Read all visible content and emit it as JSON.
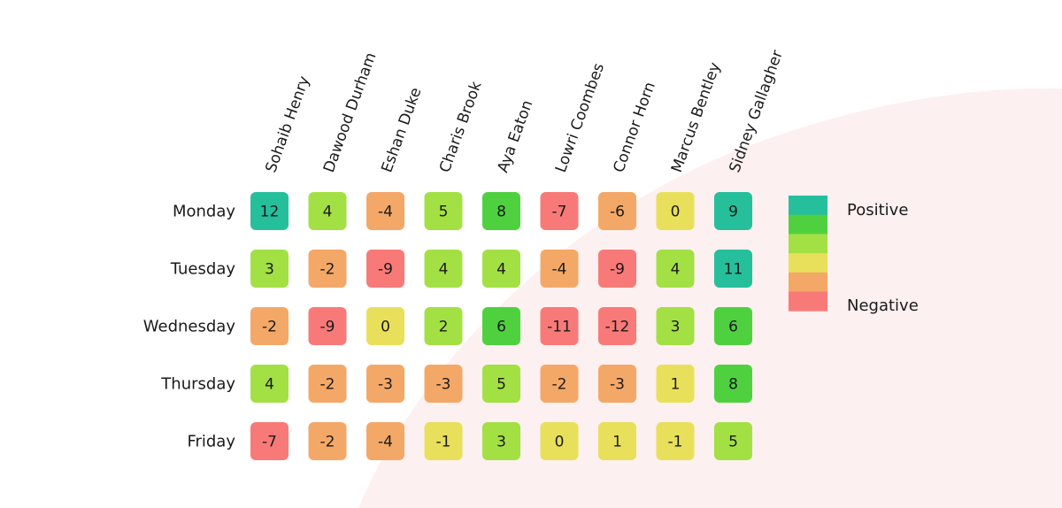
{
  "chart_data": {
    "type": "heatmap",
    "title": "",
    "columns": [
      "Sohaib Henry",
      "Dawood Durham",
      "Eshan Duke",
      "Charis Brook",
      "Aya Eaton",
      "Lowri Coombes",
      "Connor Horn",
      "Marcus Bentley",
      "Sidney Gallagher"
    ],
    "rows": [
      "Monday",
      "Tuesday",
      "Wednesday",
      "Thursday",
      "Friday"
    ],
    "values": [
      [
        12,
        4,
        -4,
        5,
        8,
        -7,
        -6,
        0,
        9
      ],
      [
        3,
        -2,
        -9,
        4,
        4,
        -4,
        -9,
        4,
        11
      ],
      [
        -2,
        -9,
        0,
        2,
        6,
        -11,
        -12,
        3,
        6
      ],
      [
        4,
        -2,
        -3,
        -3,
        5,
        -2,
        -3,
        1,
        8
      ],
      [
        -7,
        -2,
        -4,
        -1,
        3,
        0,
        1,
        -1,
        5
      ]
    ],
    "legend": {
      "top_label": "Positive",
      "bottom_label": "Negative",
      "colors": [
        "#26bf9c",
        "#4fd13f",
        "#a3e044",
        "#e8e05a",
        "#f4a867",
        "#f87a78"
      ]
    },
    "color_bins": [
      {
        "min": 9,
        "color": "#26bf9c"
      },
      {
        "min": 6,
        "color": "#4fd13f"
      },
      {
        "min": 2,
        "color": "#a3e044"
      },
      {
        "min": -1,
        "color": "#e8e05a"
      },
      {
        "min": -6,
        "color": "#f4a867"
      },
      {
        "min": -100,
        "color": "#f87a78"
      }
    ],
    "background_color": "#fdf0f0"
  }
}
